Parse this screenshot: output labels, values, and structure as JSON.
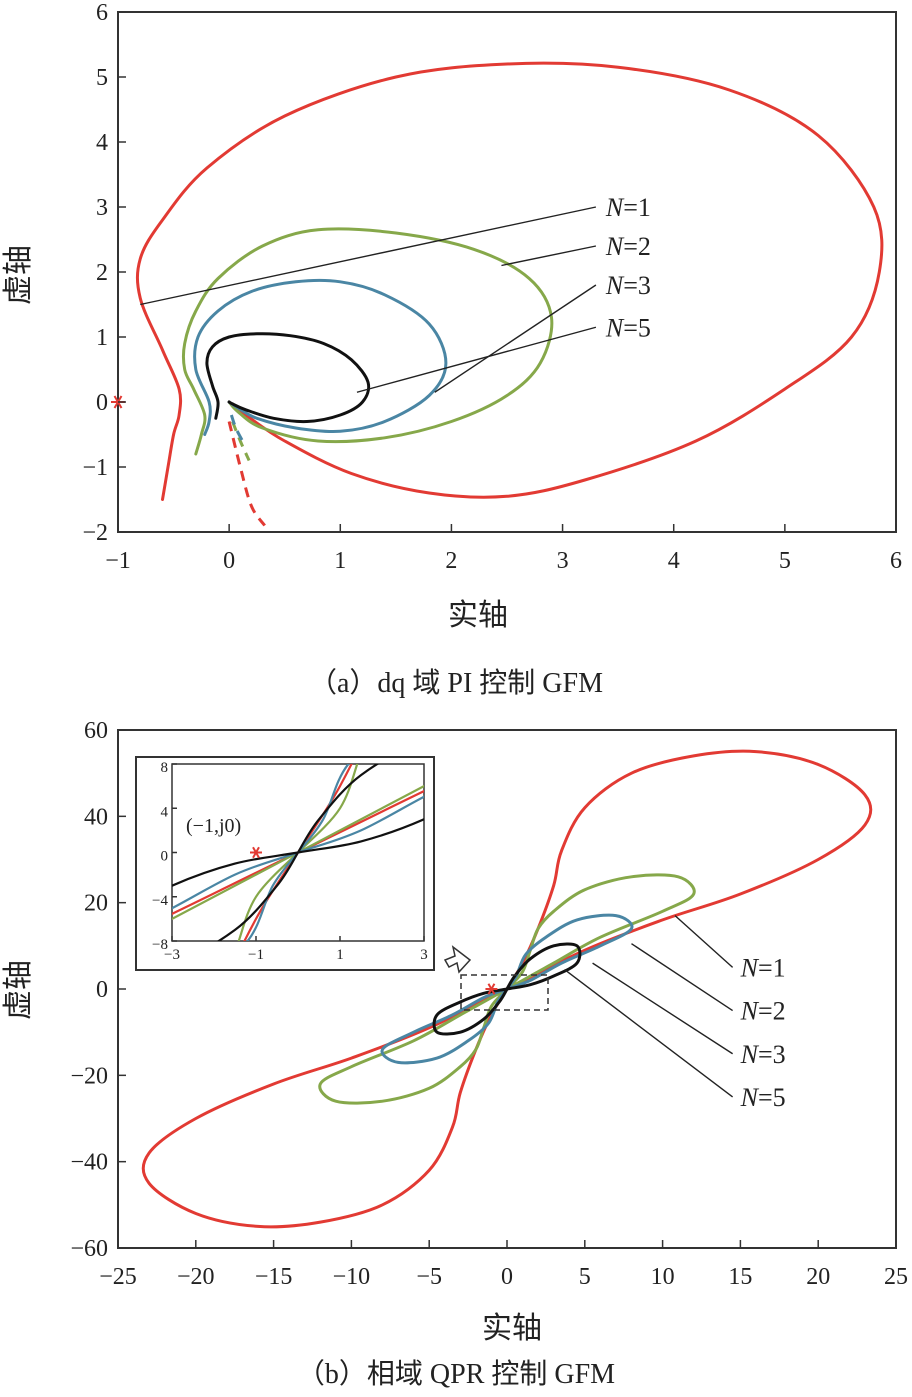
{
  "colors": {
    "N1": "#e23a33",
    "N2": "#86a84a",
    "N3": "#4a86a4",
    "N5": "#111111",
    "axis": "#333333",
    "star": "#e23a33"
  },
  "chart_data": [
    {
      "type": "line",
      "panel": "a",
      "caption": "（a）dq 域 PI 控制 GFM",
      "xlabel": "实轴",
      "ylabel": "虚轴",
      "xlim": [
        -1,
        6
      ],
      "ylim": [
        -2,
        6
      ],
      "xticks": [
        "−1",
        "0",
        "1",
        "2",
        "3",
        "4",
        "5",
        "6"
      ],
      "yticks": [
        "−2",
        "−1",
        "0",
        "1",
        "2",
        "3",
        "4",
        "5",
        "6"
      ],
      "critical_point": {
        "x": -1,
        "y": 0
      },
      "series": [
        {
          "name": "N=1",
          "n": "1",
          "color_key": "N1",
          "x": [
            -0.6,
            -0.55,
            -0.5,
            -0.45,
            -0.45,
            -0.6,
            -0.8,
            -0.8,
            -0.6,
            -0.2,
            0.5,
            1.5,
            2.5,
            3.5,
            4.5,
            5.3,
            5.8,
            5.85,
            5.6,
            5.0,
            4.2,
            3.2,
            2.5,
            1.8,
            1.1,
            0.5,
            0.15,
            0.0
          ],
          "y": [
            -1.5,
            -1.0,
            -0.5,
            -0.2,
            0.2,
            0.8,
            1.6,
            2.2,
            2.8,
            3.6,
            4.4,
            5.0,
            5.2,
            5.15,
            4.8,
            4.1,
            3.0,
            2.0,
            1.0,
            0.2,
            -0.6,
            -1.2,
            -1.45,
            -1.4,
            -1.1,
            -0.6,
            -0.2,
            0.0
          ],
          "dashed_x": [
            0.0,
            0.1,
            0.2,
            0.32
          ],
          "dashed_y": [
            -0.3,
            -1.0,
            -1.6,
            -1.9
          ],
          "label_end": {
            "x": -0.8,
            "y": 1.5
          }
        },
        {
          "name": "N=2",
          "n": "2",
          "color_key": "N2",
          "x": [
            -0.3,
            -0.25,
            -0.22,
            -0.32,
            -0.4,
            -0.4,
            -0.3,
            -0.1,
            0.3,
            0.8,
            1.5,
            2.2,
            2.7,
            2.9,
            2.8,
            2.5,
            2.0,
            1.4,
            0.8,
            0.3,
            0.08,
            0.0
          ],
          "y": [
            -0.8,
            -0.5,
            -0.2,
            0.2,
            0.5,
            0.9,
            1.4,
            1.9,
            2.4,
            2.65,
            2.6,
            2.35,
            1.9,
            1.3,
            0.6,
            0.1,
            -0.3,
            -0.55,
            -0.6,
            -0.4,
            -0.15,
            0.0
          ],
          "dashed_x": [
            0.03,
            0.1,
            0.18
          ],
          "dashed_y": [
            -0.3,
            -0.6,
            -0.9
          ],
          "label_end": {
            "x": 2.45,
            "y": 2.1
          }
        },
        {
          "name": "N=3",
          "n": "3",
          "color_key": "N3",
          "x": [
            -0.22,
            -0.18,
            -0.18,
            -0.3,
            -0.28,
            -0.1,
            0.2,
            0.6,
            1.0,
            1.4,
            1.8,
            1.95,
            1.8,
            1.4,
            1.0,
            0.6,
            0.25,
            0.07,
            0.0
          ],
          "y": [
            -0.5,
            -0.3,
            0.0,
            0.5,
            1.0,
            1.4,
            1.7,
            1.85,
            1.85,
            1.65,
            1.2,
            0.6,
            0.1,
            -0.3,
            -0.45,
            -0.4,
            -0.25,
            -0.08,
            0.0
          ],
          "dashed_x": [
            0.02,
            0.06,
            0.12
          ],
          "dashed_y": [
            -0.2,
            -0.4,
            -0.6
          ],
          "label_end": {
            "x": 1.85,
            "y": 0.15
          }
        },
        {
          "name": "N=5",
          "n": "5",
          "color_key": "N5",
          "x": [
            -0.12,
            -0.1,
            -0.15,
            -0.2,
            -0.15,
            0.0,
            0.25,
            0.55,
            0.85,
            1.1,
            1.25,
            1.2,
            1.0,
            0.7,
            0.4,
            0.15,
            0.03,
            0.0
          ],
          "y": [
            -0.25,
            0.0,
            0.25,
            0.6,
            0.85,
            1.0,
            1.05,
            1.02,
            0.9,
            0.65,
            0.3,
            0.0,
            -0.2,
            -0.3,
            -0.25,
            -0.12,
            -0.03,
            0.0
          ],
          "dashed_x": [],
          "dashed_y": [],
          "label_end": {
            "x": 1.15,
            "y": 0.15
          }
        }
      ],
      "labels": [
        {
          "series": "N=1",
          "anchor": {
            "x": 3.3,
            "y": 3.0
          }
        },
        {
          "series": "N=2",
          "anchor": {
            "x": 3.3,
            "y": 2.4
          }
        },
        {
          "series": "N=3",
          "anchor": {
            "x": 3.3,
            "y": 1.8
          }
        },
        {
          "series": "N=5",
          "anchor": {
            "x": 3.3,
            "y": 1.15
          }
        }
      ]
    },
    {
      "type": "line",
      "panel": "b",
      "caption": "（b）相域 QPR 控制 GFM",
      "xlabel": "实轴",
      "ylabel": "虚轴",
      "xlim": [
        -25,
        25
      ],
      "ylim": [
        -60,
        60
      ],
      "xticks": [
        "−25",
        "−20",
        "−15",
        "−10",
        "−5",
        "0",
        "5",
        "10",
        "15",
        "20",
        "25"
      ],
      "yticks": [
        "−60",
        "−40",
        "−20",
        "0",
        "20",
        "40",
        "60"
      ],
      "critical_point": {
        "x": -1,
        "y": 0
      },
      "inset": {
        "label": "(−1,j0)",
        "xlim": [
          -3,
          3
        ],
        "ylim": [
          -8,
          8
        ],
        "xticks": [
          "−3",
          "−1",
          "1",
          "3"
        ],
        "yticks": [
          "−8",
          "−4",
          "0",
          "4",
          "8"
        ]
      },
      "series": [
        {
          "name": "N=1",
          "n": "1",
          "color_key": "N1",
          "x": [
            0,
            1,
            2,
            3,
            3.5,
            5,
            8,
            12,
            16,
            20,
            23,
            23,
            20,
            15,
            10,
            5,
            0,
            -5,
            -10,
            -15,
            -20,
            -23,
            -23,
            -20,
            -16,
            -12,
            -8,
            -5,
            -3.5,
            -3,
            -2,
            -1,
            0
          ],
          "y": [
            0,
            6,
            14,
            24,
            32,
            42,
            50,
            54,
            55,
            52,
            45,
            38,
            30,
            22,
            16,
            9,
            0,
            -9,
            -16,
            -22,
            -30,
            -38,
            -45,
            -52,
            -55,
            -54,
            -50,
            -42,
            -32,
            -24,
            -14,
            -6,
            0
          ],
          "label_end": {
            "x": 10.8,
            "y": 17
          }
        },
        {
          "name": "N=2",
          "n": "2",
          "color_key": "N2",
          "x": [
            0,
            1,
            1.5,
            2,
            3,
            5,
            8,
            11,
            12,
            10,
            6,
            3,
            1,
            0,
            -1,
            -3,
            -6,
            -10,
            -12,
            -11,
            -8,
            -5,
            -3,
            -2,
            -1.5,
            -1,
            0
          ],
          "y": [
            0,
            4,
            9,
            14,
            18,
            23,
            26,
            26,
            22,
            18,
            12,
            6,
            2,
            0,
            -2,
            -6,
            -12,
            -18,
            -22,
            -26,
            -26,
            -23,
            -18,
            -14,
            -9,
            -4,
            0
          ],
          "label_end": {
            "x": 8,
            "y": 10.5
          }
        },
        {
          "name": "N=3",
          "n": "3",
          "color_key": "N3",
          "x": [
            0,
            0.6,
            1.2,
            2.5,
            4.5,
            7,
            8,
            6,
            3.5,
            1.5,
            0,
            -1.5,
            -3.5,
            -6,
            -8,
            -7,
            -4.5,
            -2.5,
            -1.2,
            -0.6,
            0
          ],
          "y": [
            0,
            3,
            8,
            12,
            16,
            17,
            14,
            10,
            6,
            2,
            0,
            -2,
            -6,
            -10,
            -14,
            -17,
            -16,
            -12,
            -8,
            -3,
            0
          ],
          "label_end": {
            "x": 5.5,
            "y": 6
          }
        },
        {
          "name": "N=5",
          "n": "5",
          "color_key": "N5",
          "x": [
            0,
            0.5,
            1.5,
            3,
            4.5,
            4.5,
            3,
            1.5,
            0,
            -1.5,
            -3,
            -4.5,
            -4.5,
            -3,
            -1.5,
            -0.5,
            0
          ],
          "y": [
            0,
            3,
            7,
            10,
            10,
            6,
            3,
            1,
            0,
            -1,
            -3,
            -6,
            -10,
            -10,
            -7,
            -3,
            0
          ],
          "label_end": {
            "x": 3.7,
            "y": 4.5
          }
        }
      ],
      "labels": [
        {
          "series": "N=1",
          "anchor": {
            "x": 14.5,
            "y": 5
          }
        },
        {
          "series": "N=2",
          "anchor": {
            "x": 14.5,
            "y": -5
          }
        },
        {
          "series": "N=3",
          "anchor": {
            "x": 14.5,
            "y": -15
          }
        },
        {
          "series": "N=5",
          "anchor": {
            "x": 14.5,
            "y": -25
          }
        }
      ]
    }
  ]
}
